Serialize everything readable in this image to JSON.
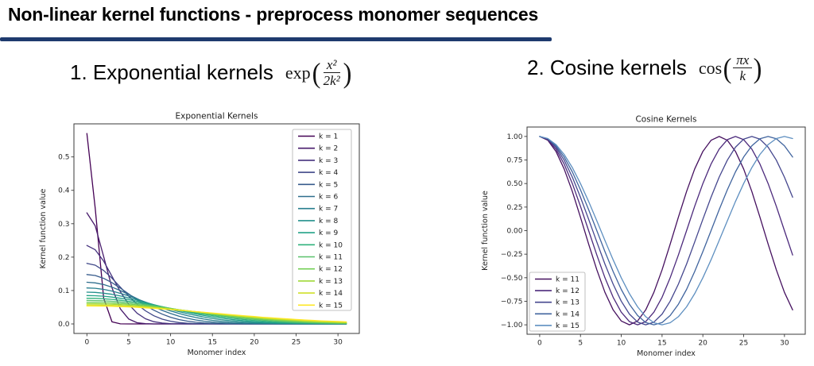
{
  "slide": {
    "title": "Non-linear kernel functions - preprocess monomer sequences",
    "accent_color": "#1e3a6e"
  },
  "sections": [
    {
      "heading": "1. Exponential kernels",
      "formula": {
        "func": "exp",
        "lparen": "(",
        "numerator": "x²",
        "denominator": "2k²",
        "rparen": ")"
      }
    },
    {
      "heading": "2. Cosine kernels",
      "formula": {
        "func": "cos",
        "lparen": "(",
        "numerator": "πx",
        "denominator": "k",
        "rparen": ")"
      }
    }
  ],
  "chart_data": [
    {
      "type": "line",
      "title": "Exponential Kernels",
      "xlabel": "Monomer index",
      "ylabel": "Kernel function value",
      "xlim": [
        -1.55,
        32.55
      ],
      "ylim": [
        -0.0285,
        0.599
      ],
      "grid": false,
      "legend_position": "upper right",
      "xtick_values": [
        0,
        5,
        10,
        15,
        20,
        25,
        30
      ],
      "xtick_labels": [
        "0",
        "5",
        "10",
        "15",
        "20",
        "25",
        "30"
      ],
      "ytick_values": [
        0.0,
        0.1,
        0.2,
        0.3,
        0.4,
        0.5
      ],
      "ytick_labels": [
        "0.0",
        "0.1",
        "0.2",
        "0.3",
        "0.4",
        "0.5"
      ],
      "x": [
        0,
        1,
        2,
        3,
        4,
        5,
        6,
        7,
        8,
        9,
        10,
        11,
        12,
        13,
        14,
        15,
        16,
        17,
        18,
        19,
        20,
        21,
        22,
        23,
        24,
        25,
        26,
        27,
        28,
        29,
        30,
        31
      ],
      "series": [
        {
          "name": "k = 1",
          "color": "#440154",
          "values": [
            0.5703,
            0.3459,
            0.0772,
            0.0063,
            0.0002,
            0,
            0,
            0,
            0,
            0,
            0,
            0,
            0,
            0,
            0,
            0,
            0,
            0,
            0,
            0,
            0,
            0,
            0,
            0,
            0,
            0,
            0,
            0,
            0,
            0,
            0,
            0
          ]
        },
        {
          "name": "k = 2",
          "color": "#471a6b",
          "values": [
            0.3326,
            0.2935,
            0.2017,
            0.108,
            0.045,
            0.0146,
            0.0037,
            0.0007,
            0.0001,
            0,
            0,
            0,
            0,
            0,
            0,
            0,
            0,
            0,
            0,
            0,
            0,
            0,
            0,
            0,
            0,
            0,
            0,
            0,
            0,
            0,
            0,
            0
          ]
        },
        {
          "name": "k = 3",
          "color": "#45317d",
          "values": [
            0.2348,
            0.2221,
            0.188,
            0.1424,
            0.0965,
            0.0585,
            0.0318,
            0.0154,
            0.0067,
            0.0026,
            0.0009,
            0.0003,
            0.0001,
            0,
            0,
            0,
            0,
            0,
            0,
            0,
            0,
            0,
            0,
            0,
            0,
            0,
            0,
            0,
            0,
            0,
            0,
            0
          ]
        },
        {
          "name": "k = 4",
          "color": "#3f4788",
          "values": [
            0.1814,
            0.1758,
            0.1601,
            0.1369,
            0.11,
            0.083,
            0.0589,
            0.0392,
            0.0245,
            0.0144,
            0.008,
            0.0041,
            0.002,
            0.0009,
            0.0004,
            0.0002,
            0.0001,
            0,
            0,
            0,
            0,
            0,
            0,
            0,
            0,
            0,
            0,
            0,
            0,
            0,
            0,
            0
          ]
        },
        {
          "name": "k = 5",
          "color": "#375b8c",
          "values": [
            0.1478,
            0.1449,
            0.1364,
            0.1234,
            0.1073,
            0.0896,
            0.0719,
            0.0555,
            0.0411,
            0.0292,
            0.02,
            0.0131,
            0.0083,
            0.005,
            0.0029,
            0.0016,
            0.0009,
            0.0005,
            0.0002,
            0.0001,
            0.0001,
            0,
            0,
            0,
            0,
            0,
            0,
            0,
            0,
            0,
            0,
            0
          ]
        },
        {
          "name": "k = 6",
          "color": "#2f6e8e",
          "values": [
            0.1247,
            0.123,
            0.118,
            0.11,
            0.0998,
            0.0881,
            0.0756,
            0.0631,
            0.0513,
            0.0405,
            0.0311,
            0.0232,
            0.0169,
            0.0119,
            0.0082,
            0.0055,
            0.0036,
            0.0022,
            0.0014,
            0.0008,
            0.0005,
            0.0003,
            0.0002,
            0.0001,
            0,
            0,
            0,
            0,
            0,
            0,
            0,
            0
          ]
        },
        {
          "name": "k = 7",
          "color": "#277e8e",
          "values": [
            0.1078,
            0.1067,
            0.1035,
            0.0984,
            0.0916,
            0.0836,
            0.0747,
            0.0654,
            0.0561,
            0.0472,
            0.0389,
            0.0314,
            0.0248,
            0.0192,
            0.0146,
            0.0108,
            0.0079,
            0.0056,
            0.0039,
            0.0027,
            0.0018,
            0.0012,
            0.0008,
            0.0005,
            0.0003,
            0.0002,
            0.0001,
            0.0001,
            0,
            0,
            0,
            0
          ]
        },
        {
          "name": "k = 8",
          "color": "#23908c",
          "values": [
            0.095,
            0.0943,
            0.0921,
            0.0886,
            0.0838,
            0.0781,
            0.0717,
            0.0648,
            0.0576,
            0.0505,
            0.0435,
            0.0369,
            0.0308,
            0.0254,
            0.0205,
            0.0164,
            0.0129,
            0.0099,
            0.0076,
            0.0057,
            0.0042,
            0.003,
            0.0022,
            0.0015,
            0.0011,
            0.0007,
            0.0005,
            0.0003,
            0.0002,
            0.0001,
            0.0001,
            0.0001
          ]
        },
        {
          "name": "k = 9",
          "color": "#22a287",
          "values": [
            0.0849,
            0.0844,
            0.0829,
            0.0803,
            0.0769,
            0.0728,
            0.068,
            0.0628,
            0.0572,
            0.0515,
            0.0458,
            0.0402,
            0.0349,
            0.0299,
            0.0253,
            0.0212,
            0.0175,
            0.0143,
            0.0115,
            0.0091,
            0.0072,
            0.0056,
            0.0043,
            0.0032,
            0.0024,
            0.0018,
            0.0013,
            0.0009,
            0.0007,
            0.0005,
            0.0003,
            0.0002
          ]
        },
        {
          "name": "k = 10",
          "color": "#30b27c",
          "values": [
            0.0768,
            0.0765,
            0.0753,
            0.0735,
            0.0709,
            0.0678,
            0.0642,
            0.0601,
            0.0558,
            0.0513,
            0.0466,
            0.042,
            0.0374,
            0.033,
            0.0288,
            0.0249,
            0.0214,
            0.0181,
            0.0152,
            0.0126,
            0.0104,
            0.0085,
            0.0068,
            0.0055,
            0.0043,
            0.0034,
            0.0026,
            0.002,
            0.0015,
            0.0011,
            0.0009,
            0.0006
          ]
        },
        {
          "name": "k = 11",
          "color": "#5ac16b",
          "values": [
            0.0703,
            0.07,
            0.0691,
            0.0677,
            0.0658,
            0.0634,
            0.0606,
            0.0574,
            0.0539,
            0.0503,
            0.0465,
            0.0426,
            0.0388,
            0.035,
            0.0313,
            0.0277,
            0.0244,
            0.0213,
            0.0184,
            0.0158,
            0.0135,
            0.0114,
            0.0095,
            0.0079,
            0.0065,
            0.0053,
            0.0043,
            0.0035,
            0.0028,
            0.0022,
            0.0017,
            0.0013
          ]
        },
        {
          "name": "k = 12",
          "color": "#73cf56",
          "values": [
            0.0649,
            0.0647,
            0.064,
            0.0629,
            0.0614,
            0.0595,
            0.0573,
            0.0547,
            0.052,
            0.049,
            0.0459,
            0.0426,
            0.0394,
            0.0361,
            0.0329,
            0.0297,
            0.0267,
            0.0238,
            0.0211,
            0.0185,
            0.0162,
            0.014,
            0.0121,
            0.0103,
            0.0088,
            0.0074,
            0.0062,
            0.0052,
            0.0043,
            0.0035,
            0.0029,
            0.0023
          ]
        },
        {
          "name": "k = 13",
          "color": "#a1d938",
          "values": [
            0.0604,
            0.0603,
            0.0597,
            0.0589,
            0.0577,
            0.0561,
            0.0543,
            0.0523,
            0.05,
            0.0476,
            0.045,
            0.0423,
            0.0395,
            0.0367,
            0.0338,
            0.0311,
            0.0283,
            0.0257,
            0.0232,
            0.0208,
            0.0185,
            0.0164,
            0.0144,
            0.0126,
            0.011,
            0.0095,
            0.0082,
            0.007,
            0.0059,
            0.005,
            0.0042,
            0.0035
          ]
        },
        {
          "name": "k = 14",
          "color": "#cfe129",
          "values": [
            0.0568,
            0.0566,
            0.0562,
            0.0555,
            0.0545,
            0.0533,
            0.0518,
            0.0501,
            0.0482,
            0.0462,
            0.044,
            0.0417,
            0.0393,
            0.0369,
            0.0344,
            0.032,
            0.0295,
            0.0272,
            0.0248,
            0.0226,
            0.0205,
            0.0184,
            0.0165,
            0.0147,
            0.0131,
            0.0115,
            0.0101,
            0.0088,
            0.0077,
            0.0066,
            0.0057,
            0.0049
          ]
        },
        {
          "name": "k = 15",
          "color": "#fde725",
          "values": [
            0.0537,
            0.0536,
            0.0532,
            0.0526,
            0.0518,
            0.0508,
            0.0496,
            0.0481,
            0.0466,
            0.0448,
            0.043,
            0.041,
            0.039,
            0.0369,
            0.0347,
            0.0326,
            0.0304,
            0.0282,
            0.0261,
            0.0241,
            0.0221,
            0.0201,
            0.0183,
            0.0166,
            0.0149,
            0.0134,
            0.012,
            0.0106,
            0.0094,
            0.0083,
            0.0073,
            0.0063
          ]
        }
      ]
    },
    {
      "type": "line",
      "title": "Cosine Kernels",
      "xlabel": "Monomer index",
      "ylabel": "Kernel function value",
      "xlim": [
        -1.55,
        32.55
      ],
      "ylim": [
        -1.1,
        1.1
      ],
      "grid": false,
      "legend_position": "lower left",
      "xtick_values": [
        0,
        5,
        10,
        15,
        20,
        25,
        30
      ],
      "xtick_labels": [
        "0",
        "5",
        "10",
        "15",
        "20",
        "25",
        "30"
      ],
      "ytick_values": [
        -1.0,
        -0.75,
        -0.5,
        -0.25,
        0.0,
        0.25,
        0.5,
        0.75,
        1.0
      ],
      "ytick_labels": [
        "−1.00",
        "−0.75",
        "−0.50",
        "−0.25",
        "0.00",
        "0.25",
        "0.50",
        "0.75",
        "1.00"
      ],
      "x": [
        0,
        1,
        2,
        3,
        4,
        5,
        6,
        7,
        8,
        9,
        10,
        11,
        12,
        13,
        14,
        15,
        16,
        17,
        18,
        19,
        20,
        21,
        22,
        23,
        24,
        25,
        26,
        27,
        28,
        29,
        30,
        31
      ],
      "series": [
        {
          "name": "k = 11",
          "color": "#45105f",
          "values": [
            1,
            0.9595,
            0.8413,
            0.6549,
            0.4154,
            0.1423,
            -0.1423,
            -0.4154,
            -0.6549,
            -0.8413,
            -0.9595,
            -1,
            -0.9595,
            -0.8413,
            -0.6549,
            -0.4154,
            -0.1423,
            0.1423,
            0.4154,
            0.6549,
            0.8413,
            0.9595,
            1,
            0.9595,
            0.8413,
            0.6549,
            0.4154,
            0.1423,
            -0.1423,
            -0.4154,
            -0.6549,
            -0.8413
          ]
        },
        {
          "name": "k = 12",
          "color": "#4c2a7c",
          "values": [
            1,
            0.9659,
            0.866,
            0.7071,
            0.5,
            0.2588,
            0,
            -0.2588,
            -0.5,
            -0.7071,
            -0.866,
            -0.9659,
            -1,
            -0.9659,
            -0.866,
            -0.7071,
            -0.5,
            -0.2588,
            0,
            0.2588,
            0.5,
            0.7071,
            0.866,
            0.9659,
            1,
            0.9659,
            0.866,
            0.7071,
            0.5,
            0.2588,
            0,
            -0.2588
          ]
        },
        {
          "name": "k = 13",
          "color": "#45478e",
          "values": [
            1,
            0.9709,
            0.8855,
            0.7485,
            0.5681,
            0.3546,
            0.1205,
            -0.1205,
            -0.3546,
            -0.5681,
            -0.7485,
            -0.8855,
            -0.9709,
            -1,
            -0.9709,
            -0.8855,
            -0.7485,
            -0.5681,
            -0.3546,
            -0.1205,
            0.1205,
            0.3546,
            0.5681,
            0.7485,
            0.8855,
            0.9709,
            1,
            0.9709,
            0.8855,
            0.7485,
            0.5681,
            0.3546
          ]
        },
        {
          "name": "k = 14",
          "color": "#40649e",
          "values": [
            1,
            0.9749,
            0.901,
            0.7818,
            0.6235,
            0.4339,
            0.2225,
            0,
            -0.2225,
            -0.4339,
            -0.6235,
            -0.7818,
            -0.901,
            -0.9749,
            -1,
            -0.9749,
            -0.901,
            -0.7818,
            -0.6235,
            -0.4339,
            -0.2225,
            0,
            0.2225,
            0.4339,
            0.6235,
            0.7818,
            0.901,
            0.9749,
            1,
            0.9749,
            0.901,
            0.7818
          ]
        },
        {
          "name": "k = 15",
          "color": "#5e8fc0",
          "values": [
            1,
            0.9781,
            0.9135,
            0.809,
            0.6691,
            0.5,
            0.309,
            0.1045,
            -0.1045,
            -0.309,
            -0.5,
            -0.6691,
            -0.809,
            -0.9135,
            -0.9781,
            -1,
            -0.9781,
            -0.9135,
            -0.809,
            -0.6691,
            -0.5,
            -0.309,
            -0.1045,
            0.1045,
            0.309,
            0.5,
            0.6691,
            0.809,
            0.9135,
            0.9781,
            1,
            0.9781
          ]
        }
      ]
    }
  ]
}
